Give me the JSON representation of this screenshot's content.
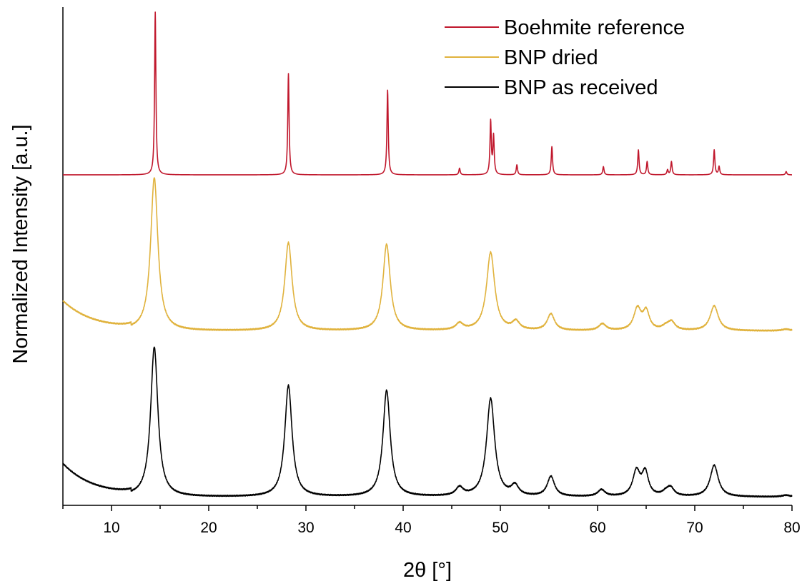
{
  "chart_data": {
    "type": "line",
    "title": "",
    "xlabel": "2θ [°]",
    "ylabel": "Normalized Intensity [a.u.]",
    "xlim": [
      5,
      80
    ],
    "ylim": [
      0,
      3.0
    ],
    "x_ticks": [
      10,
      20,
      30,
      40,
      50,
      60,
      70,
      80
    ],
    "x_minor_step": 5,
    "y_tick_labels": false,
    "grid": false,
    "legend": {
      "position": "top-right"
    },
    "series": [
      {
        "name": "Boehmite reference",
        "color": "#c0172c",
        "offset": 1.99,
        "baseline": 0.0,
        "peaks": [
          {
            "x": 14.5,
            "h": 0.98,
            "w": 0.08
          },
          {
            "x": 28.2,
            "h": 0.61,
            "w": 0.08
          },
          {
            "x": 38.4,
            "h": 0.51,
            "w": 0.08
          },
          {
            "x": 45.8,
            "h": 0.04,
            "w": 0.08
          },
          {
            "x": 49.0,
            "h": 0.32,
            "w": 0.08
          },
          {
            "x": 49.3,
            "h": 0.23,
            "w": 0.08
          },
          {
            "x": 51.7,
            "h": 0.06,
            "w": 0.08
          },
          {
            "x": 55.3,
            "h": 0.17,
            "w": 0.08
          },
          {
            "x": 60.6,
            "h": 0.05,
            "w": 0.08
          },
          {
            "x": 64.2,
            "h": 0.15,
            "w": 0.08
          },
          {
            "x": 65.1,
            "h": 0.08,
            "w": 0.08
          },
          {
            "x": 67.2,
            "h": 0.03,
            "w": 0.08
          },
          {
            "x": 67.6,
            "h": 0.08,
            "w": 0.08
          },
          {
            "x": 72.0,
            "h": 0.15,
            "w": 0.08
          },
          {
            "x": 72.5,
            "h": 0.05,
            "w": 0.08
          },
          {
            "x": 79.4,
            "h": 0.02,
            "w": 0.08
          }
        ]
      },
      {
        "name": "BNP dried",
        "color": "#e0b23c",
        "offset": 1.05,
        "baseline": 0.0,
        "background": {
          "amp": 0.18,
          "decay": 1.6
        },
        "peaks": [
          {
            "x": 14.4,
            "h": 0.92,
            "w": 0.45
          },
          {
            "x": 28.2,
            "h": 0.53,
            "w": 0.45
          },
          {
            "x": 38.3,
            "h": 0.52,
            "w": 0.45
          },
          {
            "x": 45.8,
            "h": 0.04,
            "w": 0.45
          },
          {
            "x": 49.0,
            "h": 0.47,
            "w": 0.5
          },
          {
            "x": 51.6,
            "h": 0.05,
            "w": 0.45
          },
          {
            "x": 55.2,
            "h": 0.1,
            "w": 0.45
          },
          {
            "x": 60.5,
            "h": 0.04,
            "w": 0.45
          },
          {
            "x": 64.1,
            "h": 0.13,
            "w": 0.45
          },
          {
            "x": 65.0,
            "h": 0.11,
            "w": 0.4
          },
          {
            "x": 67.0,
            "h": 0.02,
            "w": 0.45
          },
          {
            "x": 67.6,
            "h": 0.05,
            "w": 0.45
          },
          {
            "x": 72.0,
            "h": 0.15,
            "w": 0.5
          },
          {
            "x": 79.4,
            "h": 0.01,
            "w": 0.5
          }
        ]
      },
      {
        "name": "BNP as received",
        "color": "#000000",
        "offset": 0.05,
        "baseline": 0.0,
        "background": {
          "amp": 0.2,
          "decay": 1.6
        },
        "peaks": [
          {
            "x": 14.4,
            "h": 0.9,
            "w": 0.45
          },
          {
            "x": 28.2,
            "h": 0.67,
            "w": 0.45
          },
          {
            "x": 38.3,
            "h": 0.64,
            "w": 0.45
          },
          {
            "x": 45.8,
            "h": 0.05,
            "w": 0.45
          },
          {
            "x": 49.0,
            "h": 0.59,
            "w": 0.5
          },
          {
            "x": 51.5,
            "h": 0.06,
            "w": 0.45
          },
          {
            "x": 55.2,
            "h": 0.12,
            "w": 0.45
          },
          {
            "x": 60.4,
            "h": 0.04,
            "w": 0.45
          },
          {
            "x": 64.0,
            "h": 0.15,
            "w": 0.45
          },
          {
            "x": 64.9,
            "h": 0.14,
            "w": 0.4
          },
          {
            "x": 67.0,
            "h": 0.02,
            "w": 0.45
          },
          {
            "x": 67.5,
            "h": 0.05,
            "w": 0.45
          },
          {
            "x": 72.0,
            "h": 0.19,
            "w": 0.5
          },
          {
            "x": 79.4,
            "h": 0.01,
            "w": 0.5
          }
        ]
      }
    ]
  }
}
